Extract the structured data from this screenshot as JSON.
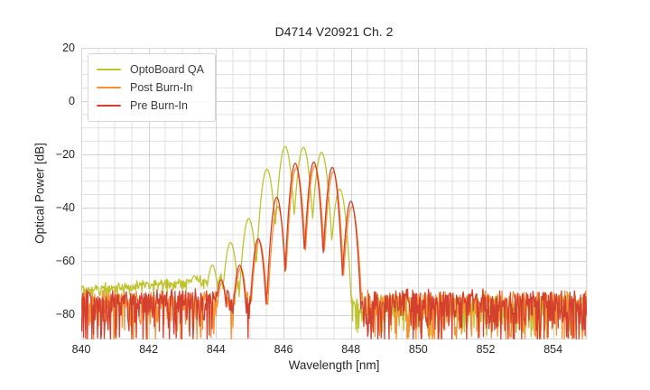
{
  "chart_data": {
    "type": "line",
    "title": "D4714 V20921 Ch. 2",
    "xlabel": "Wavelength [nm]",
    "ylabel": "Optical Power [dB]",
    "xlim": [
      840,
      855
    ],
    "ylim": [
      -89.3,
      20
    ],
    "xticks": [
      840,
      842,
      844,
      846,
      848,
      850,
      852,
      854
    ],
    "xticklabels": [
      "840",
      "842",
      "844",
      "846",
      "848",
      "850",
      "852",
      "854"
    ],
    "yticks": [
      20,
      0,
      -20,
      -40,
      -60,
      -80
    ],
    "yticklabels": [
      "20",
      "0",
      "−20",
      "−40",
      "−60",
      "−80"
    ],
    "grid": {
      "major": true,
      "minor": true,
      "x_minor_step_nm": 0.5,
      "y_minor_step_db": 5,
      "major_color": "#d2d2d2",
      "minor_color": "#e0e0e0",
      "border_color": "#d8d8d8"
    },
    "legend_position": "upper-left",
    "series": [
      {
        "name": "OptoBoard QA",
        "color": "#bec32e",
        "mode_spacing_nm": 0.54,
        "peak_halfwidth_nm": 0.27,
        "valley_depth_db": 26,
        "modes": [
          [
            843.35,
            -65.5
          ],
          [
            843.89,
            -61.5
          ],
          [
            844.43,
            -53
          ],
          [
            844.97,
            -44
          ],
          [
            845.51,
            -25.5
          ],
          [
            846.05,
            -17.0
          ],
          [
            846.59,
            -17.3
          ],
          [
            847.13,
            -19.2
          ],
          [
            847.67,
            -33
          ]
        ],
        "noise": {
          "base_points": [
            [
              840,
              -70
            ],
            [
              844.4,
              -65.5
            ],
            [
              845.2,
              -74
            ],
            [
              855,
              -74
            ]
          ],
          "regions": [
            {
              "to": 844.6,
              "jitter_db": 1.2,
              "spike_mean_db": 1.2,
              "spike_max_db": 5
            },
            {
              "to": 855,
              "jitter_db": 2.0,
              "spike_mean_db": 4.5,
              "spike_max_db": 13
            }
          ]
        }
      },
      {
        "name": "Post Burn-In",
        "color": "#f79030",
        "mode_spacing_nm": 0.55,
        "peak_halfwidth_nm": 0.275,
        "valley_depth_db": 32,
        "modes": [
          [
            844.18,
            -68
          ],
          [
            844.73,
            -62.5
          ],
          [
            845.28,
            -52.5
          ],
          [
            845.83,
            -39.5
          ],
          [
            846.38,
            -25.0
          ],
          [
            846.93,
            -24.3
          ],
          [
            847.48,
            -26.5
          ],
          [
            848.03,
            -39.5
          ]
        ],
        "noise": {
          "base_points": [
            [
              840,
              -72
            ],
            [
              855,
              -72
            ]
          ],
          "regions": [
            {
              "to": 855,
              "jitter_db": 1.5,
              "spike_mean_db": 6.0,
              "spike_max_db": 17
            }
          ]
        }
      },
      {
        "name": "Pre Burn-In",
        "color": "#d4402f",
        "mode_spacing_nm": 0.55,
        "peak_halfwidth_nm": 0.275,
        "valley_depth_db": 34,
        "modes": [
          [
            844.15,
            -67
          ],
          [
            844.7,
            -61.5
          ],
          [
            845.25,
            -51.5
          ],
          [
            845.8,
            -36.0
          ],
          [
            846.35,
            -23.3
          ],
          [
            846.9,
            -22.8
          ],
          [
            847.45,
            -24.8
          ],
          [
            848.0,
            -37.5
          ]
        ],
        "noise": {
          "base_points": [
            [
              840,
              -71.5
            ],
            [
              855,
              -71.5
            ]
          ],
          "regions": [
            {
              "to": 855,
              "jitter_db": 1.5,
              "spike_mean_db": 6.5,
              "spike_max_db": 17.5
            }
          ]
        }
      }
    ]
  }
}
